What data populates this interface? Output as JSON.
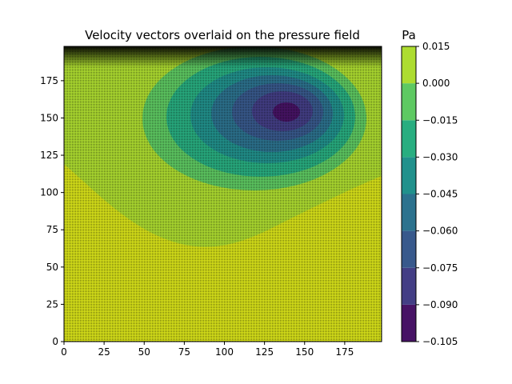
{
  "chart_data": {
    "type": "heatmap",
    "subtype": "filled-contour-with-quiver",
    "title": "Velocity vectors overlaid on the pressure field",
    "xlabel": "",
    "ylabel": "",
    "xlim": [
      0,
      198
    ],
    "ylim": [
      0,
      198
    ],
    "x_ticks": [
      0,
      25,
      50,
      75,
      100,
      125,
      150,
      175
    ],
    "y_ticks": [
      0,
      25,
      50,
      75,
      100,
      125,
      150,
      175
    ],
    "grid": false,
    "colorbar": {
      "label": "Pa",
      "levels": [
        -0.105,
        -0.09,
        -0.075,
        -0.06,
        -0.045,
        -0.03,
        -0.015,
        0.0,
        0.015
      ],
      "tick_labels": [
        "−0.105",
        "−0.090",
        "−0.075",
        "−0.060",
        "−0.045",
        "−0.030",
        "−0.015",
        "0.000",
        "0.015"
      ],
      "colors": [
        "#471365",
        "#433e85",
        "#38598c",
        "#2c728e",
        "#21918c",
        "#28ae80",
        "#5ec962",
        "#addc30",
        "#d8e219"
      ]
    },
    "field": {
      "vortex_center": [
        139,
        153
      ],
      "quiver_color": "#000000",
      "quiver_grid_step": 2
    }
  }
}
